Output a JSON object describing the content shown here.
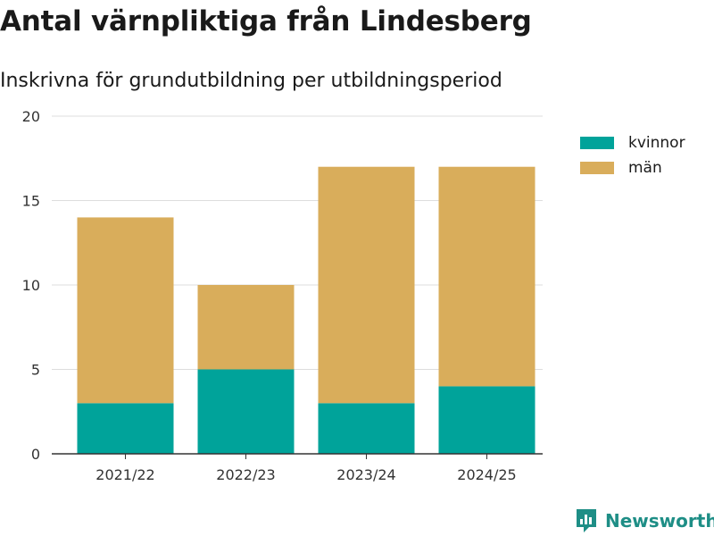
{
  "title": "Antal värnpliktiga från Lindesberg",
  "subtitle": "Inskrivna för grundutbildning per utbildningsperiod",
  "brand": {
    "name": "Newsworthy",
    "icon": "newsworthy-logo-icon"
  },
  "colors": {
    "kvinnor": "#00a39a",
    "man": "#d9ad5b",
    "grid": "#dddddd",
    "axis": "#333333",
    "brand": "#1e8e86"
  },
  "chart_data": {
    "type": "bar",
    "stacked": true,
    "title": "Antal värnpliktiga från Lindesberg",
    "subtitle": "Inskrivna för grundutbildning per utbildningsperiod",
    "xlabel": "",
    "ylabel": "",
    "categories": [
      "2021/22",
      "2022/23",
      "2023/24",
      "2024/25"
    ],
    "series": [
      {
        "name": "kvinnor",
        "values": [
          3,
          5,
          3,
          4
        ],
        "color": "#00a39a"
      },
      {
        "name": "män",
        "values": [
          11,
          5,
          14,
          13
        ],
        "color": "#d9ad5b"
      }
    ],
    "ylim": [
      0,
      20
    ],
    "yticks": [
      0,
      5,
      10,
      15,
      20
    ],
    "grid": true,
    "legend": "top-right"
  }
}
